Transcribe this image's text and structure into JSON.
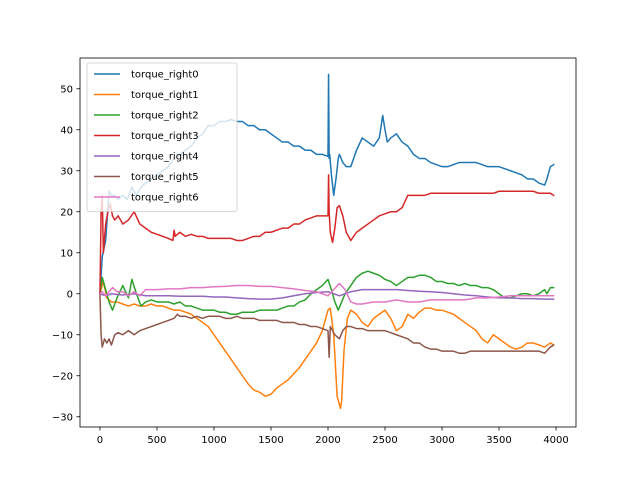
{
  "chart_data": {
    "type": "line",
    "title": "",
    "xlabel": "",
    "ylabel": "",
    "xlim": [
      -175,
      4175
    ],
    "ylim": [
      -32.5,
      57.5
    ],
    "xticks": [
      0,
      500,
      1000,
      1500,
      2000,
      2500,
      3000,
      3500,
      4000
    ],
    "yticks": [
      -30,
      -20,
      -10,
      0,
      10,
      20,
      30,
      40,
      50
    ],
    "grid": false,
    "legend_position": "upper-left",
    "series": [
      {
        "name": "torque_right0",
        "color": "#1f77b4",
        "x": [
          0,
          20,
          50,
          80,
          100,
          130,
          160,
          200,
          240,
          280,
          320,
          360,
          400,
          450,
          500,
          550,
          600,
          650,
          700,
          750,
          800,
          850,
          900,
          950,
          1000,
          1050,
          1100,
          1150,
          1200,
          1250,
          1300,
          1350,
          1400,
          1450,
          1500,
          1550,
          1600,
          1650,
          1700,
          1750,
          1800,
          1850,
          1900,
          1950,
          2000,
          2005,
          2010,
          2015,
          2030,
          2050,
          2070,
          2090,
          2100,
          2130,
          2160,
          2200,
          2250,
          2300,
          2350,
          2400,
          2450,
          2480,
          2500,
          2520,
          2550,
          2600,
          2650,
          2700,
          2750,
          2800,
          2850,
          2900,
          2950,
          3000,
          3050,
          3100,
          3150,
          3200,
          3250,
          3300,
          3350,
          3400,
          3450,
          3500,
          3550,
          3600,
          3650,
          3700,
          3750,
          3800,
          3850,
          3900,
          3920,
          3950,
          3980
        ],
        "y": [
          0,
          9,
          13,
          25,
          24,
          24,
          23,
          24,
          23,
          26,
          24,
          26,
          27,
          28,
          29,
          30,
          31,
          33,
          34,
          35,
          36,
          38,
          39,
          41,
          41,
          42,
          42,
          42.5,
          42,
          42,
          41,
          41,
          40,
          40,
          39,
          38,
          37,
          37,
          36,
          36,
          35,
          35,
          34,
          34,
          33.5,
          53.5,
          33,
          34,
          29,
          24,
          28,
          33,
          34,
          32,
          31,
          31,
          35,
          38,
          37,
          36,
          38,
          43.5,
          40,
          37,
          38,
          39,
          37,
          36,
          34,
          33,
          33,
          32,
          31.5,
          31,
          31,
          31.5,
          32,
          32,
          32,
          32,
          31.5,
          31,
          31,
          31,
          30.5,
          30,
          29.5,
          29,
          28,
          28,
          27,
          26.5,
          28,
          31,
          31.5
        ]
      },
      {
        "name": "torque_right1",
        "color": "#ff7f0e",
        "x": [
          0,
          30,
          60,
          100,
          150,
          200,
          250,
          300,
          350,
          400,
          450,
          500,
          550,
          600,
          650,
          700,
          750,
          800,
          850,
          900,
          950,
          1000,
          1050,
          1100,
          1150,
          1200,
          1250,
          1300,
          1350,
          1400,
          1450,
          1500,
          1550,
          1600,
          1650,
          1700,
          1750,
          1800,
          1850,
          1900,
          1950,
          2000,
          2020,
          2050,
          2080,
          2100,
          2110,
          2120,
          2140,
          2170,
          2200,
          2250,
          2300,
          2350,
          2400,
          2450,
          2500,
          2550,
          2600,
          2650,
          2700,
          2750,
          2800,
          2850,
          2900,
          2950,
          3000,
          3050,
          3100,
          3150,
          3200,
          3250,
          3300,
          3350,
          3400,
          3450,
          3500,
          3550,
          3600,
          3650,
          3700,
          3750,
          3800,
          3850,
          3900,
          3950,
          3980
        ],
        "y": [
          0,
          3,
          -1,
          -2,
          -2,
          -2.5,
          -3,
          -2.5,
          -3,
          -3,
          -2.5,
          -3,
          -3,
          -3.5,
          -4,
          -4,
          -4.5,
          -5,
          -6,
          -7,
          -8,
          -10,
          -12,
          -14,
          -16,
          -18,
          -20,
          -22,
          -23.5,
          -24,
          -25,
          -24.5,
          -23,
          -22,
          -21,
          -19.5,
          -18,
          -16,
          -14,
          -12,
          -9,
          -4,
          -3.5,
          -10,
          -25,
          -27,
          -28,
          -26,
          -14,
          -6,
          -4,
          -5,
          -7,
          -8,
          -6,
          -5,
          -4,
          -6,
          -9,
          -8,
          -5,
          -6,
          -4.5,
          -3.5,
          -3.5,
          -4,
          -4,
          -4.5,
          -5,
          -6,
          -7,
          -8,
          -9,
          -11,
          -12,
          -10,
          -11,
          -12,
          -13,
          -13.5,
          -13,
          -12,
          -12,
          -12.5,
          -13,
          -12,
          -12.5
        ]
      },
      {
        "name": "torque_right2",
        "color": "#2ca02c",
        "x": [
          0,
          20,
          50,
          80,
          110,
          150,
          200,
          250,
          280,
          320,
          360,
          400,
          450,
          500,
          550,
          600,
          650,
          700,
          750,
          800,
          850,
          900,
          950,
          1000,
          1050,
          1100,
          1150,
          1200,
          1250,
          1300,
          1350,
          1400,
          1450,
          1500,
          1550,
          1600,
          1650,
          1700,
          1750,
          1800,
          1850,
          1900,
          1950,
          2000,
          2030,
          2060,
          2090,
          2120,
          2150,
          2200,
          2250,
          2300,
          2350,
          2400,
          2450,
          2500,
          2550,
          2600,
          2650,
          2700,
          2750,
          2800,
          2850,
          2900,
          2950,
          3000,
          3050,
          3100,
          3150,
          3200,
          3250,
          3300,
          3350,
          3400,
          3450,
          3500,
          3550,
          3600,
          3650,
          3700,
          3750,
          3800,
          3850,
          3900,
          3920,
          3950,
          3980
        ],
        "y": [
          0,
          4,
          1,
          -2,
          -4,
          -1,
          2,
          -1,
          3.5,
          0,
          -3,
          -2,
          -1.5,
          -2,
          -2,
          -2,
          -2.5,
          -2,
          -3,
          -3,
          -3.5,
          -4,
          -4,
          -4,
          -4.5,
          -4.5,
          -5,
          -5,
          -4.5,
          -4.5,
          -4.5,
          -4,
          -4,
          -4,
          -4,
          -3.5,
          -3,
          -3,
          -2,
          -1.5,
          0,
          1,
          2,
          3.5,
          1,
          -2,
          -4,
          -2,
          0,
          2,
          4,
          5,
          5.5,
          5,
          4.5,
          3.5,
          3,
          2,
          3,
          4,
          4,
          4.5,
          4.5,
          4,
          3,
          3,
          2.5,
          2.5,
          2,
          2.5,
          2,
          2,
          1.5,
          1.5,
          1,
          0,
          -1,
          -1,
          -0.5,
          0,
          0,
          -0.5,
          0,
          1,
          0,
          1.5,
          1.5
        ]
      },
      {
        "name": "torque_right3",
        "color": "#d62728",
        "x": [
          0,
          10,
          20,
          30,
          50,
          70,
          90,
          110,
          130,
          160,
          200,
          250,
          300,
          350,
          400,
          450,
          500,
          550,
          600,
          640,
          650,
          660,
          700,
          750,
          800,
          850,
          900,
          950,
          1000,
          1050,
          1100,
          1150,
          1200,
          1250,
          1300,
          1350,
          1400,
          1450,
          1500,
          1550,
          1600,
          1650,
          1700,
          1750,
          1800,
          1850,
          1900,
          1950,
          2000,
          2005,
          2010,
          2020,
          2040,
          2060,
          2080,
          2100,
          2130,
          2160,
          2200,
          2250,
          2300,
          2350,
          2400,
          2450,
          2500,
          2550,
          2600,
          2650,
          2700,
          2750,
          2800,
          2850,
          2900,
          2950,
          3000,
          3050,
          3100,
          3150,
          3200,
          3250,
          3300,
          3350,
          3400,
          3450,
          3500,
          3550,
          3600,
          3650,
          3700,
          3750,
          3800,
          3850,
          3900,
          3950,
          3980
        ],
        "y": [
          0,
          20,
          24,
          10,
          17,
          20,
          22,
          19,
          18,
          19,
          17,
          18,
          20,
          17,
          16,
          15,
          14.5,
          14,
          13.5,
          13,
          15.5,
          14,
          15,
          14,
          14.5,
          14,
          14,
          13.5,
          13.5,
          13.5,
          13.5,
          13.5,
          13,
          13,
          13.5,
          14,
          14,
          15,
          15,
          15.5,
          16,
          16,
          17,
          17,
          18,
          18.5,
          19,
          19,
          19,
          29,
          20,
          15,
          12.5,
          16,
          21,
          21.5,
          19,
          15,
          13,
          15,
          16,
          17,
          18,
          19,
          19.5,
          20,
          20,
          21,
          24,
          24,
          24,
          24,
          24.5,
          24.5,
          24.5,
          24.5,
          24.5,
          24.5,
          24.5,
          24.5,
          24.5,
          24.5,
          24.5,
          24.5,
          25,
          25,
          25,
          25,
          25,
          25,
          25,
          24.5,
          24.5,
          24.5,
          24
        ]
      },
      {
        "name": "torque_right4",
        "color": "#9467bd",
        "x": [
          0,
          50,
          100,
          200,
          300,
          400,
          500,
          600,
          700,
          800,
          900,
          1000,
          1100,
          1200,
          1300,
          1400,
          1500,
          1600,
          1700,
          1800,
          1900,
          2000,
          2050,
          2100,
          2150,
          2200,
          2300,
          2400,
          2500,
          2600,
          2700,
          2800,
          2900,
          3000,
          3100,
          3200,
          3300,
          3400,
          3500,
          3600,
          3700,
          3800,
          3900,
          3980
        ],
        "y": [
          0,
          -0.5,
          0,
          -0.3,
          0,
          -0.5,
          -0.5,
          -0.5,
          -0.6,
          -0.6,
          -0.6,
          -0.8,
          -0.8,
          -1,
          -1.2,
          -1.3,
          -1.3,
          -1,
          -0.5,
          0,
          0.3,
          0.5,
          0,
          -0.5,
          0,
          0.5,
          1,
          1,
          1,
          1,
          0.8,
          0.6,
          0.5,
          0.3,
          0,
          -0.3,
          -0.5,
          -0.8,
          -1,
          -1,
          -1.2,
          -1.2,
          -1.3,
          -1.3
        ]
      },
      {
        "name": "torque_right5",
        "color": "#8c564b",
        "x": [
          0,
          10,
          20,
          40,
          60,
          80,
          100,
          130,
          160,
          200,
          250,
          300,
          350,
          400,
          450,
          500,
          550,
          600,
          650,
          680,
          700,
          750,
          800,
          850,
          900,
          950,
          1000,
          1050,
          1100,
          1150,
          1200,
          1250,
          1300,
          1350,
          1400,
          1450,
          1500,
          1550,
          1600,
          1650,
          1700,
          1750,
          1800,
          1850,
          1900,
          1950,
          2000,
          2010,
          2020,
          2040,
          2060,
          2080,
          2100,
          2130,
          2160,
          2200,
          2250,
          2300,
          2350,
          2400,
          2450,
          2500,
          2550,
          2600,
          2650,
          2700,
          2750,
          2800,
          2850,
          2900,
          2950,
          3000,
          3050,
          3100,
          3150,
          3200,
          3250,
          3300,
          3350,
          3400,
          3450,
          3500,
          3550,
          3600,
          3650,
          3700,
          3750,
          3800,
          3850,
          3900,
          3950,
          3980
        ],
        "y": [
          0,
          -10,
          -13,
          -11,
          -12,
          -11,
          -12.5,
          -10,
          -9.5,
          -10,
          -9,
          -10,
          -9,
          -8.5,
          -8,
          -7.5,
          -7,
          -6.5,
          -6,
          -5,
          -5.5,
          -5.5,
          -6,
          -5.5,
          -6,
          -5.5,
          -5.5,
          -5.5,
          -6,
          -6,
          -5.5,
          -6,
          -6,
          -6,
          -6.5,
          -6.5,
          -6.5,
          -6.5,
          -7,
          -7,
          -7,
          -7.5,
          -7.5,
          -8,
          -8,
          -8.5,
          -9,
          -15.5,
          -8,
          -9,
          -10,
          -10.5,
          -11,
          -9,
          -8,
          -8,
          -8.5,
          -8.5,
          -9,
          -9,
          -9,
          -9,
          -9.5,
          -10,
          -10.5,
          -11,
          -12,
          -12,
          -13,
          -13.5,
          -13.5,
          -14,
          -14,
          -14,
          -14.5,
          -14.5,
          -14,
          -14,
          -14,
          -14,
          -14,
          -14,
          -14,
          -14,
          -14,
          -14,
          -14,
          -14,
          -14,
          -14.5,
          -13,
          -12.5
        ]
      },
      {
        "name": "torque_right6",
        "color": "#e377c2",
        "x": [
          0,
          20,
          50,
          80,
          110,
          150,
          200,
          250,
          300,
          350,
          400,
          500,
          600,
          700,
          800,
          900,
          1000,
          1100,
          1200,
          1300,
          1400,
          1500,
          1600,
          1700,
          1800,
          1900,
          1950,
          2000,
          2050,
          2100,
          2150,
          2200,
          2250,
          2300,
          2400,
          2500,
          2600,
          2700,
          2800,
          2900,
          3000,
          3100,
          3200,
          3300,
          3400,
          3500,
          3600,
          3700,
          3800,
          3900,
          3980
        ],
        "y": [
          0,
          0.5,
          -0.5,
          0.5,
          1.5,
          0.5,
          0.5,
          -0.5,
          0.5,
          -0.5,
          1,
          1,
          1.2,
          1.2,
          1.5,
          1.5,
          1.7,
          1.8,
          2,
          2,
          1.8,
          1.8,
          1.5,
          1.2,
          0.8,
          0.5,
          0,
          -0.5,
          1,
          2.5,
          1,
          -2,
          -2.5,
          -2.5,
          -2,
          -2,
          -1.5,
          -2,
          -2,
          -1.5,
          -1.5,
          -1.5,
          -1.5,
          -1,
          -1,
          -0.8,
          -0.5,
          -0.5,
          -0.5,
          -0.5,
          -0.5
        ]
      }
    ]
  }
}
